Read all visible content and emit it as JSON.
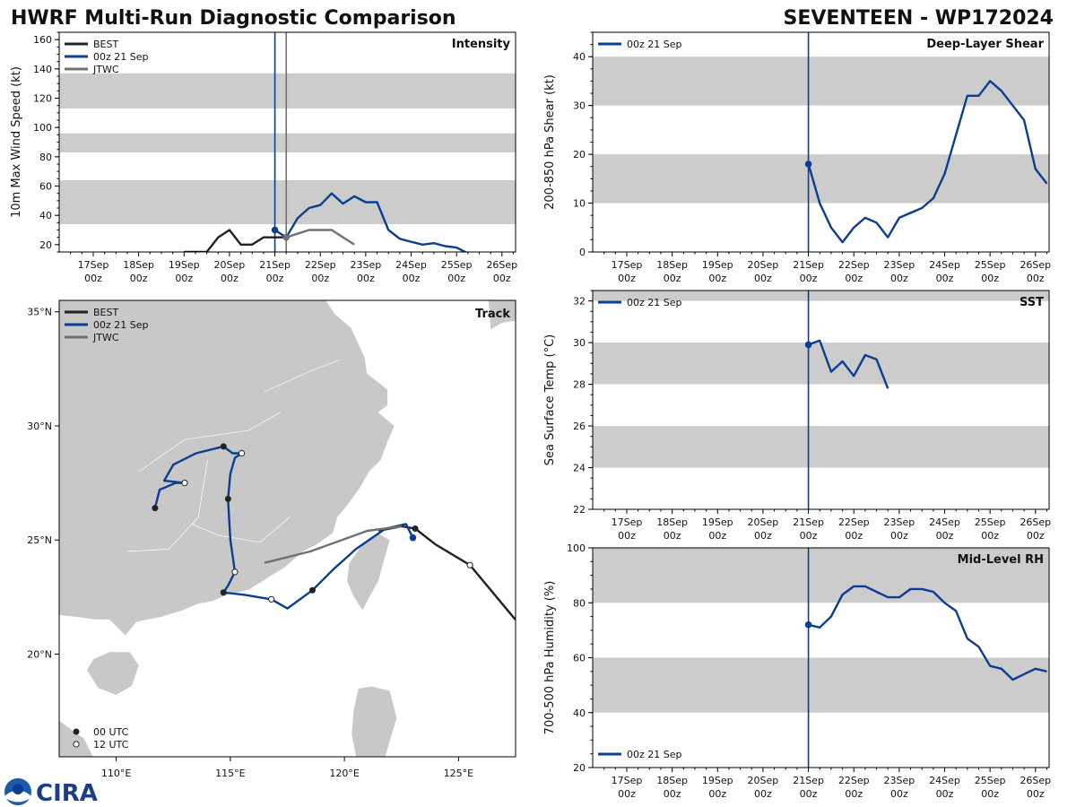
{
  "title": "HWRF Multi-Run Diagnostic Comparison",
  "storm_title": "SEVENTEEN - WP172024",
  "logo": {
    "text": "CIRA",
    "icon": "noaa-logo"
  },
  "colors": {
    "best": "#222222",
    "run": "#0b3d91",
    "jtwc": "#707070",
    "band": "#cccccc",
    "land": "#c8c8c8",
    "ocean": "#ffffff"
  },
  "time_ticks": [
    {
      "top": "17Sep",
      "bottom": "00z"
    },
    {
      "top": "18Sep",
      "bottom": "00z"
    },
    {
      "top": "19Sep",
      "bottom": "00z"
    },
    {
      "top": "20Sep",
      "bottom": "00z"
    },
    {
      "top": "21Sep",
      "bottom": "00z"
    },
    {
      "top": "22Sep",
      "bottom": "00z"
    },
    {
      "top": "23Sep",
      "bottom": "00z"
    },
    {
      "top": "24Sep",
      "bottom": "00z"
    },
    {
      "top": "25Sep",
      "bottom": "00z"
    },
    {
      "top": "26Sep",
      "bottom": "00z"
    }
  ],
  "chart_data": [
    {
      "id": "intensity",
      "type": "line",
      "label": "Intensity",
      "ylabel": "10m Max Wind Speed (kt)",
      "xlim_days": [
        16.25,
        26.3
      ],
      "ylim": [
        15,
        165
      ],
      "yticks": [
        20,
        40,
        60,
        80,
        100,
        120,
        140,
        160
      ],
      "bands": [
        [
          34,
          64
        ],
        [
          83,
          96
        ],
        [
          113,
          137
        ]
      ],
      "init_day": 21.0,
      "jtwc_marker_day": 21.25,
      "legend": [
        "BEST",
        "00z 21 Sep",
        "JTWC"
      ],
      "series": [
        {
          "name": "BEST",
          "color_key": "best",
          "x": [
            19.0,
            19.25,
            19.5,
            19.75,
            20.0,
            20.25,
            20.5,
            20.75,
            21.0,
            21.25
          ],
          "y": [
            15,
            15,
            15,
            25,
            30,
            20,
            20,
            25,
            25,
            25
          ]
        },
        {
          "name": "00z 21 Sep",
          "color_key": "run",
          "x": [
            21.0,
            21.25,
            21.5,
            21.75,
            22.0,
            22.25,
            22.5,
            22.75,
            23.0,
            23.25,
            23.5,
            23.75,
            24.0,
            24.25,
            24.5,
            24.75,
            25.0,
            25.25
          ],
          "y": [
            30,
            25,
            38,
            45,
            47,
            55,
            48,
            53,
            49,
            49,
            30,
            24,
            22,
            20,
            21,
            19,
            18,
            14
          ]
        },
        {
          "name": "JTWC",
          "color_key": "jtwc",
          "x": [
            21.25,
            21.75,
            22.25,
            22.75
          ],
          "y": [
            25,
            30,
            30,
            20
          ]
        }
      ]
    },
    {
      "id": "shear",
      "type": "line",
      "label": "Deep-Layer Shear",
      "ylabel": "200-850 hPa Shear (kt)",
      "xlim_days": [
        16.25,
        26.3
      ],
      "ylim": [
        0,
        45
      ],
      "yticks": [
        0,
        10,
        20,
        30,
        40
      ],
      "bands": [
        [
          10,
          20
        ],
        [
          30,
          40
        ]
      ],
      "init_day": 21.0,
      "legend": [
        "00z 21 Sep"
      ],
      "series": [
        {
          "name": "00z 21 Sep",
          "color_key": "run",
          "x": [
            21.0,
            21.25,
            21.5,
            21.75,
            22.0,
            22.25,
            22.5,
            22.75,
            23.0,
            23.25,
            23.5,
            23.75,
            24.0,
            24.25,
            24.5,
            24.75,
            25.0,
            25.25,
            25.5,
            25.75,
            26.0,
            26.25
          ],
          "y": [
            18,
            10,
            5,
            2,
            5,
            7,
            6,
            3,
            7,
            8,
            9,
            11,
            16,
            24,
            32,
            32,
            35,
            33,
            30,
            27,
            17,
            14
          ]
        }
      ]
    },
    {
      "id": "sst",
      "type": "line",
      "label": "SST",
      "ylabel": "Sea Surface Temp (°C)",
      "xlim_days": [
        16.25,
        26.3
      ],
      "ylim": [
        22,
        32.5
      ],
      "yticks": [
        22,
        24,
        26,
        28,
        30,
        32
      ],
      "bands": [
        [
          24,
          26
        ],
        [
          28,
          30
        ],
        [
          32,
          32.5
        ]
      ],
      "init_day": 21.0,
      "legend": [
        "00z 21 Sep"
      ],
      "series": [
        {
          "name": "00z 21 Sep",
          "color_key": "run",
          "x": [
            21.0,
            21.25,
            21.5,
            21.75,
            22.0,
            22.25,
            22.5,
            22.75
          ],
          "y": [
            29.9,
            30.1,
            28.6,
            29.1,
            28.4,
            29.4,
            29.2,
            27.8
          ]
        }
      ]
    },
    {
      "id": "rh",
      "type": "line",
      "label": "Mid-Level RH",
      "ylabel": "700-500 hPa Humidity (%)",
      "xlim_days": [
        16.25,
        26.3
      ],
      "ylim": [
        20,
        100
      ],
      "yticks": [
        20,
        40,
        60,
        80,
        100
      ],
      "bands": [
        [
          40,
          60
        ],
        [
          80,
          100
        ]
      ],
      "init_day": 21.0,
      "legend": [
        "00z 21 Sep"
      ],
      "series": [
        {
          "name": "00z 21 Sep",
          "color_key": "run",
          "x": [
            21.0,
            21.25,
            21.5,
            21.75,
            22.0,
            22.25,
            22.5,
            22.75,
            23.0,
            23.25,
            23.5,
            23.75,
            24.0,
            24.25,
            24.5,
            24.75,
            25.0,
            25.25,
            25.5,
            25.75,
            26.0,
            26.25
          ],
          "y": [
            72,
            71,
            75,
            83,
            86,
            86,
            84,
            82,
            82,
            85,
            85,
            84,
            80,
            77,
            67,
            64,
            57,
            56,
            52,
            54,
            56,
            55
          ]
        }
      ]
    },
    {
      "id": "track",
      "type": "scatter",
      "label": "Track",
      "xlim": [
        107.5,
        127.5
      ],
      "ylim": [
        15.5,
        35.5
      ],
      "xticks": [
        110,
        115,
        120,
        125
      ],
      "xtick_labels": [
        "110°E",
        "115°E",
        "120°E",
        "125°E"
      ],
      "yticks": [
        20,
        25,
        30,
        35
      ],
      "ytick_labels": [
        "20°N",
        "25°N",
        "30°N",
        "35°N"
      ],
      "legend": [
        "BEST",
        "00z 21 Sep",
        "JTWC"
      ],
      "marker_legend": [
        "00 UTC",
        "12 UTC"
      ],
      "series": [
        {
          "name": "BEST",
          "color_key": "best",
          "points": [
            [
              127.5,
              21.5
            ],
            [
              125.5,
              23.9
            ],
            [
              124.0,
              24.8
            ],
            [
              123.1,
              25.5
            ],
            [
              122.5,
              25.6
            ],
            [
              121.5,
              25.4
            ]
          ],
          "markers": [
            [
              125.5,
              23.9,
              "12"
            ],
            [
              123.1,
              25.5,
              "00"
            ]
          ]
        },
        {
          "name": "00z 21 Sep",
          "color_key": "run",
          "points": [
            [
              123.0,
              25.1
            ],
            [
              122.7,
              25.7
            ],
            [
              121.8,
              25.5
            ],
            [
              120.5,
              24.6
            ],
            [
              119.5,
              23.7
            ],
            [
              118.6,
              22.8
            ],
            [
              117.5,
              22.0
            ],
            [
              116.8,
              22.4
            ],
            [
              115.6,
              22.6
            ],
            [
              114.7,
              22.7
            ],
            [
              114.9,
              23.0
            ],
            [
              115.2,
              23.6
            ],
            [
              115.0,
              25.0
            ],
            [
              114.9,
              26.8
            ],
            [
              115.0,
              27.9
            ],
            [
              115.2,
              28.6
            ],
            [
              115.5,
              28.8
            ],
            [
              115.1,
              28.8
            ],
            [
              114.7,
              29.1
            ],
            [
              113.5,
              28.8
            ],
            [
              112.5,
              28.3
            ],
            [
              112.1,
              27.6
            ],
            [
              113.0,
              27.5
            ],
            [
              112.6,
              27.5
            ],
            [
              111.9,
              27.2
            ],
            [
              111.7,
              26.4
            ]
          ],
          "markers": [
            [
              123.0,
              25.1,
              "init"
            ],
            [
              118.6,
              22.8,
              "00"
            ],
            [
              116.8,
              22.4,
              "12"
            ],
            [
              114.7,
              22.7,
              "00"
            ],
            [
              115.2,
              23.6,
              "12"
            ],
            [
              114.9,
              26.8,
              "00"
            ],
            [
              115.5,
              28.8,
              "12"
            ],
            [
              114.7,
              29.1,
              "00"
            ],
            [
              113.0,
              27.5,
              "12"
            ],
            [
              111.7,
              26.4,
              "00"
            ]
          ]
        },
        {
          "name": "JTWC",
          "color_key": "jtwc",
          "points": [
            [
              122.5,
              25.6
            ],
            [
              121.0,
              25.4
            ],
            [
              118.5,
              24.5
            ],
            [
              116.5,
              24.0
            ]
          ],
          "markers": []
        }
      ]
    }
  ]
}
